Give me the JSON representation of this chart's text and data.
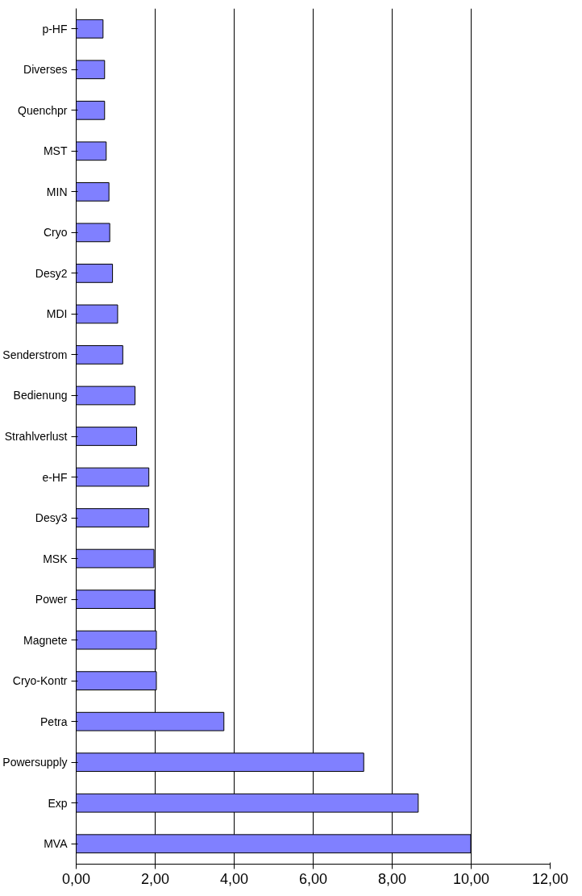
{
  "chart_data": {
    "type": "bar",
    "orientation": "horizontal",
    "categories": [
      "p-HF",
      "Diverses",
      "Quenchpr",
      "MST",
      "MIN",
      "Cryo",
      "Desy2",
      "MDI",
      "Senderstrom",
      "Bedienung",
      "Strahlverlust",
      "e-HF",
      "Desy3",
      "MSK",
      "Power",
      "Magnete",
      "Cryo-Kontr",
      "Petra",
      "Powersupply",
      "Exp",
      "MVA"
    ],
    "values": [
      0.68,
      0.72,
      0.72,
      0.76,
      0.83,
      0.85,
      0.92,
      1.05,
      1.18,
      1.49,
      1.53,
      1.84,
      1.84,
      1.97,
      1.99,
      2.03,
      2.03,
      3.74,
      7.28,
      8.66,
      9.99
    ],
    "color": "#8080ff",
    "xlim": [
      0,
      12
    ],
    "xticks": [
      {
        "value": 0,
        "label": "0,00"
      },
      {
        "value": 2,
        "label": "2,00"
      },
      {
        "value": 4,
        "label": "4,00"
      },
      {
        "value": 6,
        "label": "6,00"
      },
      {
        "value": 8,
        "label": "8,00"
      },
      {
        "value": 10,
        "label": "10,00"
      },
      {
        "value": 12,
        "label": "12,00"
      }
    ],
    "grid": "x"
  }
}
